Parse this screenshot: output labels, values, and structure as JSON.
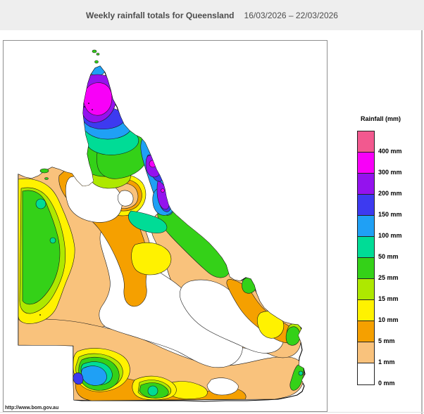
{
  "header": {
    "title": "Weekly rainfall totals for Queensland",
    "date_range": "16/03/2026 – 22/03/2026"
  },
  "map": {
    "region": "Queensland",
    "source_url": "http://www.bom.gov.au"
  },
  "legend": {
    "title": "Rainfall (mm)",
    "entries": [
      {
        "label": "400 mm",
        "color": "#F2598F"
      },
      {
        "label": "300 mm",
        "color": "#F800F8"
      },
      {
        "label": "200 mm",
        "color": "#9412EE"
      },
      {
        "label": "150 mm",
        "color": "#3D3AF0"
      },
      {
        "label": "100 mm",
        "color": "#1FA0F5"
      },
      {
        "label": "50 mm",
        "color": "#00DC96"
      },
      {
        "label": "25 mm",
        "color": "#34D118"
      },
      {
        "label": "15 mm",
        "color": "#AEE800"
      },
      {
        "label": "10 mm",
        "color": "#FFF200"
      },
      {
        "label": "5 mm",
        "color": "#F5A000"
      },
      {
        "label": "1 mm",
        "color": "#F9C27C"
      },
      {
        "label": "0 mm",
        "color": "#FFFFFF"
      }
    ]
  },
  "palette": {
    "pink": "#F2598F",
    "magenta": "#F800F8",
    "purple": "#9412EE",
    "violet": "#3D3AF0",
    "blue": "#1FA0F5",
    "teal": "#00DC96",
    "green": "#34D118",
    "yellowgreen": "#AEE800",
    "yellow": "#FFF200",
    "orange": "#F5A000",
    "tan": "#F9C27C",
    "white": "#FFFFFF",
    "header_bg": "#EEEEEE",
    "panel_border": "#8F8F8F"
  }
}
